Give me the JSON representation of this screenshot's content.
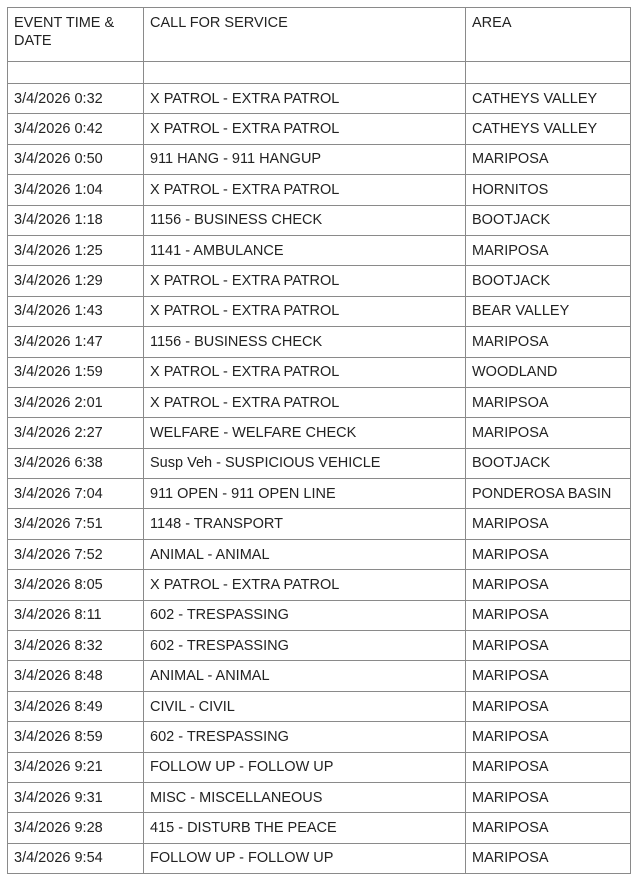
{
  "headers": [
    "EVENT TIME & DATE",
    "CALL FOR SERVICE",
    "AREA"
  ],
  "rows": [
    [
      "3/4/2026 0:32",
      "X PATROL - EXTRA PATROL",
      "CATHEYS VALLEY"
    ],
    [
      "3/4/2026 0:42",
      "X PATROL - EXTRA PATROL",
      "CATHEYS VALLEY"
    ],
    [
      "3/4/2026 0:50",
      "911 HANG - 911 HANGUP",
      "MARIPOSA"
    ],
    [
      "3/4/2026 1:04",
      "X PATROL - EXTRA PATROL",
      "HORNITOS"
    ],
    [
      "3/4/2026 1:18",
      "1156 - BUSINESS CHECK",
      "BOOTJACK"
    ],
    [
      "3/4/2026 1:25",
      "1141 - AMBULANCE",
      "MARIPOSA"
    ],
    [
      "3/4/2026 1:29",
      "X PATROL - EXTRA PATROL",
      "BOOTJACK"
    ],
    [
      "3/4/2026 1:43",
      "X PATROL - EXTRA PATROL",
      "BEAR VALLEY"
    ],
    [
      "3/4/2026 1:47",
      "1156 - BUSINESS CHECK",
      "MARIPOSA"
    ],
    [
      "3/4/2026 1:59",
      "X PATROL - EXTRA PATROL",
      "WOODLAND"
    ],
    [
      "3/4/2026 2:01",
      "X PATROL - EXTRA PATROL",
      "MARIPSOA"
    ],
    [
      "3/4/2026 2:27",
      "WELFARE - WELFARE CHECK",
      "MARIPOSA"
    ],
    [
      "3/4/2026 6:38",
      "Susp Veh - SUSPICIOUS VEHICLE",
      "BOOTJACK"
    ],
    [
      "3/4/2026 7:04",
      "911 OPEN - 911 OPEN LINE",
      "PONDEROSA BASIN"
    ],
    [
      "3/4/2026 7:51",
      "1148 - TRANSPORT",
      "MARIPOSA"
    ],
    [
      "3/4/2026 7:52",
      "ANIMAL - ANIMAL",
      "MARIPOSA"
    ],
    [
      "3/4/2026 8:05",
      "X PATROL - EXTRA PATROL",
      "MARIPOSA"
    ],
    [
      "3/4/2026 8:11",
      "602 - TRESPASSING",
      "MARIPOSA"
    ],
    [
      "3/4/2026 8:32",
      "602 - TRESPASSING",
      "MARIPOSA"
    ],
    [
      "3/4/2026 8:48",
      "ANIMAL - ANIMAL",
      "MARIPOSA"
    ],
    [
      "3/4/2026 8:49",
      "CIVIL - CIVIL",
      "MARIPOSA"
    ],
    [
      "3/4/2026 8:59",
      "602 - TRESPASSING",
      "MARIPOSA"
    ],
    [
      "3/4/2026 9:21",
      "FOLLOW UP - FOLLOW UP",
      "MARIPOSA"
    ],
    [
      "3/4/2026 9:31",
      "MISC - MISCELLANEOUS",
      "MARIPOSA"
    ],
    [
      "3/4/2026 9:28",
      "415 - DISTURB THE PEACE",
      "MARIPOSA"
    ],
    [
      "3/4/2026 9:54",
      "FOLLOW UP - FOLLOW UP",
      "MARIPOSA"
    ]
  ]
}
